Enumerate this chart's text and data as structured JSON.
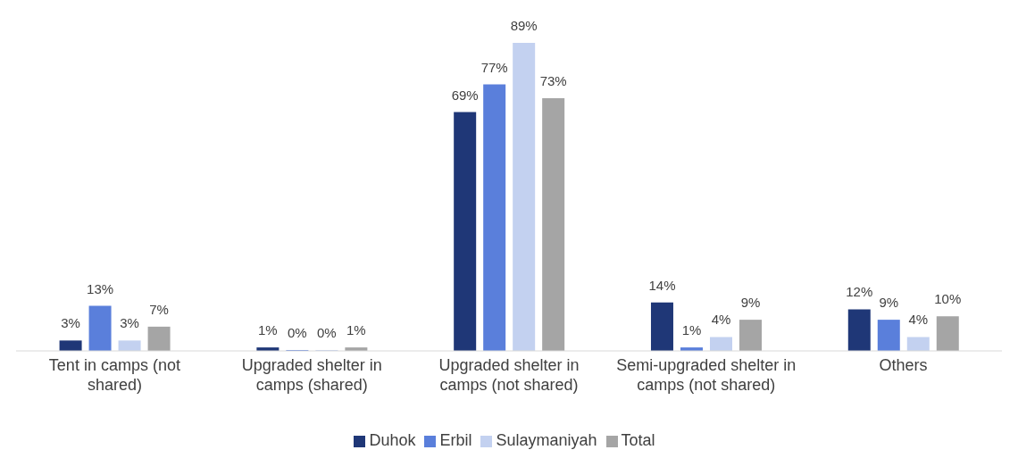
{
  "chart_data": {
    "type": "bar",
    "categories": [
      "Tent in camps (not shared)",
      "Upgraded shelter in camps (shared)",
      "Upgraded shelter in camps (not shared)",
      "Semi-upgraded shelter in camps (not shared)",
      "Others"
    ],
    "series": [
      {
        "name": "Duhok",
        "color": "#1f3777",
        "values": [
          3,
          1,
          69,
          14,
          12
        ],
        "value_labels": [
          "3%",
          "1%",
          "69%",
          "14%",
          "12%"
        ]
      },
      {
        "name": "Erbil",
        "color": "#5a7fdb",
        "values": [
          13,
          0,
          77,
          1,
          9
        ],
        "value_labels": [
          "13%",
          "0%",
          "77%",
          "1%",
          "9%"
        ]
      },
      {
        "name": "Sulaymaniyah",
        "color": "#c3d1f0",
        "values": [
          3,
          0,
          89,
          4,
          4
        ],
        "value_labels": [
          "3%",
          "0%",
          "89%",
          "4%",
          "4%"
        ]
      },
      {
        "name": "Total",
        "color": "#a5a5a5",
        "values": [
          7,
          1,
          73,
          9,
          10
        ],
        "value_labels": [
          "7%",
          "1%",
          "73%",
          "9%",
          "10%"
        ]
      }
    ],
    "grid": false,
    "legend": "bottom"
  }
}
